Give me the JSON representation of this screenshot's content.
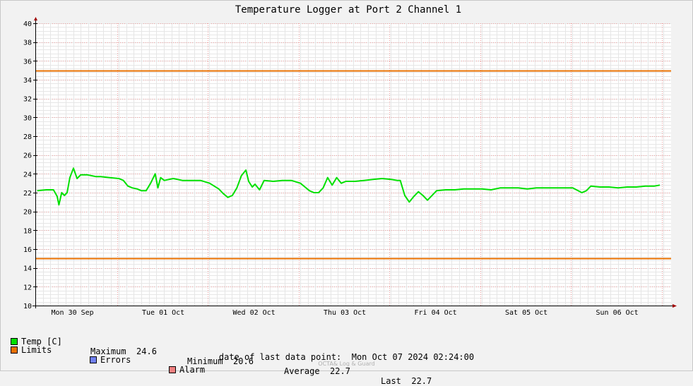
{
  "chart_data": {
    "type": "line",
    "title": "Temperature Logger at Port 2 Channel 1",
    "ylim": [
      10,
      40
    ],
    "y_ticks": [
      10,
      12,
      14,
      16,
      18,
      20,
      22,
      24,
      26,
      28,
      30,
      32,
      34,
      36,
      38,
      40
    ],
    "x_tick_labels": [
      "Mon 30 Sep",
      "Tue 01 Oct",
      "Wed 02 Oct",
      "Thu 03 Oct",
      "Fri 04 Oct",
      "Sat 05 Oct",
      "Sun 06 Oct"
    ],
    "grid": true,
    "limits": {
      "upper": 35,
      "lower": 15,
      "color": "#e87000"
    },
    "series": [
      {
        "name": "Temp [C]",
        "color": "#00e000",
        "x": [
          0,
          0.1,
          0.18,
          0.22,
          0.24,
          0.27,
          0.3,
          0.33,
          0.36,
          0.4,
          0.44,
          0.48,
          0.55,
          0.6,
          0.65,
          0.7,
          0.8,
          0.9,
          0.95,
          1.0,
          1.05,
          1.1,
          1.15,
          1.2,
          1.25,
          1.3,
          1.33,
          1.36,
          1.4,
          1.5,
          1.6,
          1.7,
          1.8,
          1.9,
          2.0,
          2.05,
          2.1,
          2.15,
          2.2,
          2.25,
          2.3,
          2.33,
          2.37,
          2.4,
          2.45,
          2.5,
          2.6,
          2.7,
          2.8,
          2.9,
          2.95,
          3.0,
          3.05,
          3.1,
          3.15,
          3.2,
          3.25,
          3.3,
          3.35,
          3.4,
          3.5,
          3.6,
          3.7,
          3.8,
          3.9,
          3.97,
          4.0,
          4.05,
          4.1,
          4.15,
          4.2,
          4.25,
          4.3,
          4.4,
          4.5,
          4.6,
          4.7,
          4.8,
          4.9,
          5.0,
          5.1,
          5.2,
          5.3,
          5.4,
          5.5,
          5.6,
          5.7,
          5.8,
          5.9,
          6.0,
          6.05,
          6.1,
          6.2,
          6.3,
          6.4,
          6.5,
          6.6,
          6.7,
          6.8,
          6.86
        ],
        "values": [
          22.2,
          22.3,
          22.3,
          21.6,
          20.7,
          22.0,
          21.7,
          22.0,
          23.6,
          24.6,
          23.5,
          23.9,
          23.9,
          23.8,
          23.7,
          23.7,
          23.6,
          23.5,
          23.3,
          22.7,
          22.5,
          22.4,
          22.2,
          22.2,
          23.0,
          24.0,
          22.5,
          23.6,
          23.3,
          23.5,
          23.3,
          23.3,
          23.3,
          23.0,
          22.4,
          21.9,
          21.5,
          21.7,
          22.5,
          23.8,
          24.4,
          23.2,
          22.6,
          22.9,
          22.3,
          23.3,
          23.2,
          23.3,
          23.3,
          23.0,
          22.6,
          22.2,
          22.0,
          22.0,
          22.5,
          23.6,
          22.8,
          23.6,
          23.0,
          23.2,
          23.2,
          23.3,
          23.4,
          23.5,
          23.4,
          23.3,
          23.3,
          21.7,
          21.0,
          21.6,
          22.1,
          21.7,
          21.2,
          22.2,
          22.3,
          22.3,
          22.4,
          22.4,
          22.4,
          22.3,
          22.5,
          22.5,
          22.5,
          22.4,
          22.5,
          22.5,
          22.5,
          22.5,
          22.5,
          22.0,
          22.2,
          22.7,
          22.6,
          22.6,
          22.5,
          22.6,
          22.6,
          22.7,
          22.7,
          22.8
        ]
      }
    ]
  },
  "legend": {
    "temp_label": "Temp [C]",
    "max_label": "Maximum",
    "max_value": "24.6",
    "min_label": "Minimum",
    "min_value": "20.6",
    "avg_label": "Average",
    "avg_value": "22.7",
    "last_label": "Last",
    "last_value": "22.7",
    "limits_label": "Limits",
    "errors_label": "Errors",
    "alarm_label": "Alarm",
    "temp_color": "#00e000",
    "limits_color": "#e87000",
    "errors_color": "#7080f0",
    "alarm_color": "#f08080"
  },
  "footer": {
    "label": "date of last data point:",
    "value": "Mon Oct 07 2024 02:24:00",
    "credit": "OCTA& Log & Guard"
  }
}
